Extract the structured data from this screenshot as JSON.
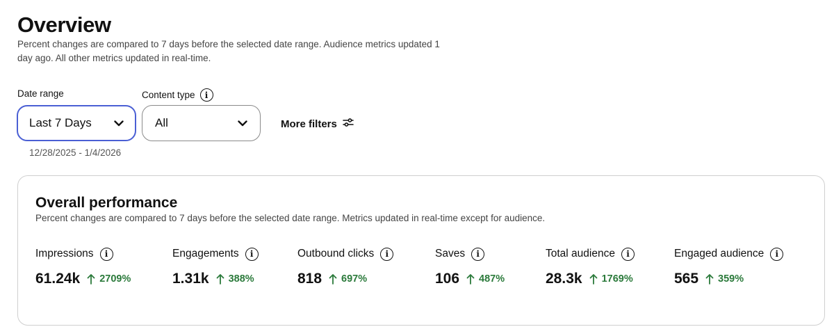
{
  "header": {
    "title": "Overview",
    "subtitle": "Percent changes are compared to 7 days before the selected date range. Audience metrics updated 1 day ago. All other metrics updated in real-time."
  },
  "filters": {
    "date_range_label": "Date range",
    "date_range_value": "Last 7 Days",
    "date_range_dates": "12/28/2025 - 1/4/2026",
    "content_type_label": "Content type",
    "content_type_value": "All",
    "more_filters_label": "More filters"
  },
  "performance": {
    "title": "Overall performance",
    "subtitle": "Percent changes are compared to 7 days before the selected date range. Metrics updated in real-time except for audience.",
    "metrics": [
      {
        "label": "Impressions",
        "value": "61.24k",
        "change": "2709%"
      },
      {
        "label": "Engagements",
        "value": "1.31k",
        "change": "388%"
      },
      {
        "label": "Outbound clicks",
        "value": "818",
        "change": "697%"
      },
      {
        "label": "Saves",
        "value": "106",
        "change": "487%"
      },
      {
        "label": "Total audience",
        "value": "28.3k",
        "change": "1769%"
      },
      {
        "label": "Engaged audience",
        "value": "565",
        "change": "359%"
      }
    ]
  },
  "colors": {
    "positive_change": "#2b7a3b",
    "focus_border": "#4a5fd4",
    "card_border": "#cfcfcf"
  },
  "icons": {
    "info": "info-icon",
    "dropdown": "chevron-down-icon",
    "filters": "sliders-icon",
    "increase": "arrow-up-icon"
  }
}
